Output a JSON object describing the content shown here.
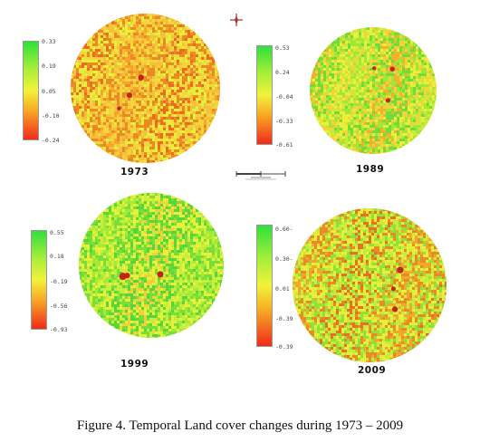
{
  "figure": {
    "caption": "Figure 4.    Temporal Land cover changes during 1973 – 2009"
  },
  "colors": {
    "high": "#2fe03a",
    "mid_high": "#a8ee3a",
    "mid": "#f3f23a",
    "mid_low": "#f7a324",
    "low": "#f02a1a"
  },
  "panels": [
    {
      "year": "1973",
      "legend": [
        "0.33",
        "0.19",
        "0.05",
        "-0.10",
        "-0.24"
      ],
      "dominant_palette": [
        "#f6a52a",
        "#f3c23a",
        "#eb8a24",
        "#f5d53c",
        "#e4f03a",
        "#ee6a20"
      ]
    },
    {
      "year": "1989",
      "legend": [
        "0.53",
        "0.24",
        "-0.04",
        "-0.33",
        "-0.61"
      ],
      "dominant_palette": [
        "#c8ec3a",
        "#e9f03a",
        "#9fe838",
        "#f3d23a",
        "#6fdc38",
        "#f0b22c"
      ]
    },
    {
      "year": "1999",
      "legend": [
        "0.55",
        "0.18",
        "-0.19",
        "-0.56",
        "-0.93"
      ],
      "dominant_palette": [
        "#a4ea38",
        "#c9ee3a",
        "#7ade3a",
        "#e8f03a",
        "#55d63a",
        "#f2d03a"
      ]
    },
    {
      "year": "2009",
      "legend": [
        "0.60-",
        "0.30-",
        "0.01",
        "-0.39",
        "-0.39"
      ],
      "dominant_palette": [
        "#f0a82c",
        "#e98a26",
        "#c8ea3a",
        "#e6f03a",
        "#8ee23a",
        "#ec6e22"
      ]
    }
  ]
}
